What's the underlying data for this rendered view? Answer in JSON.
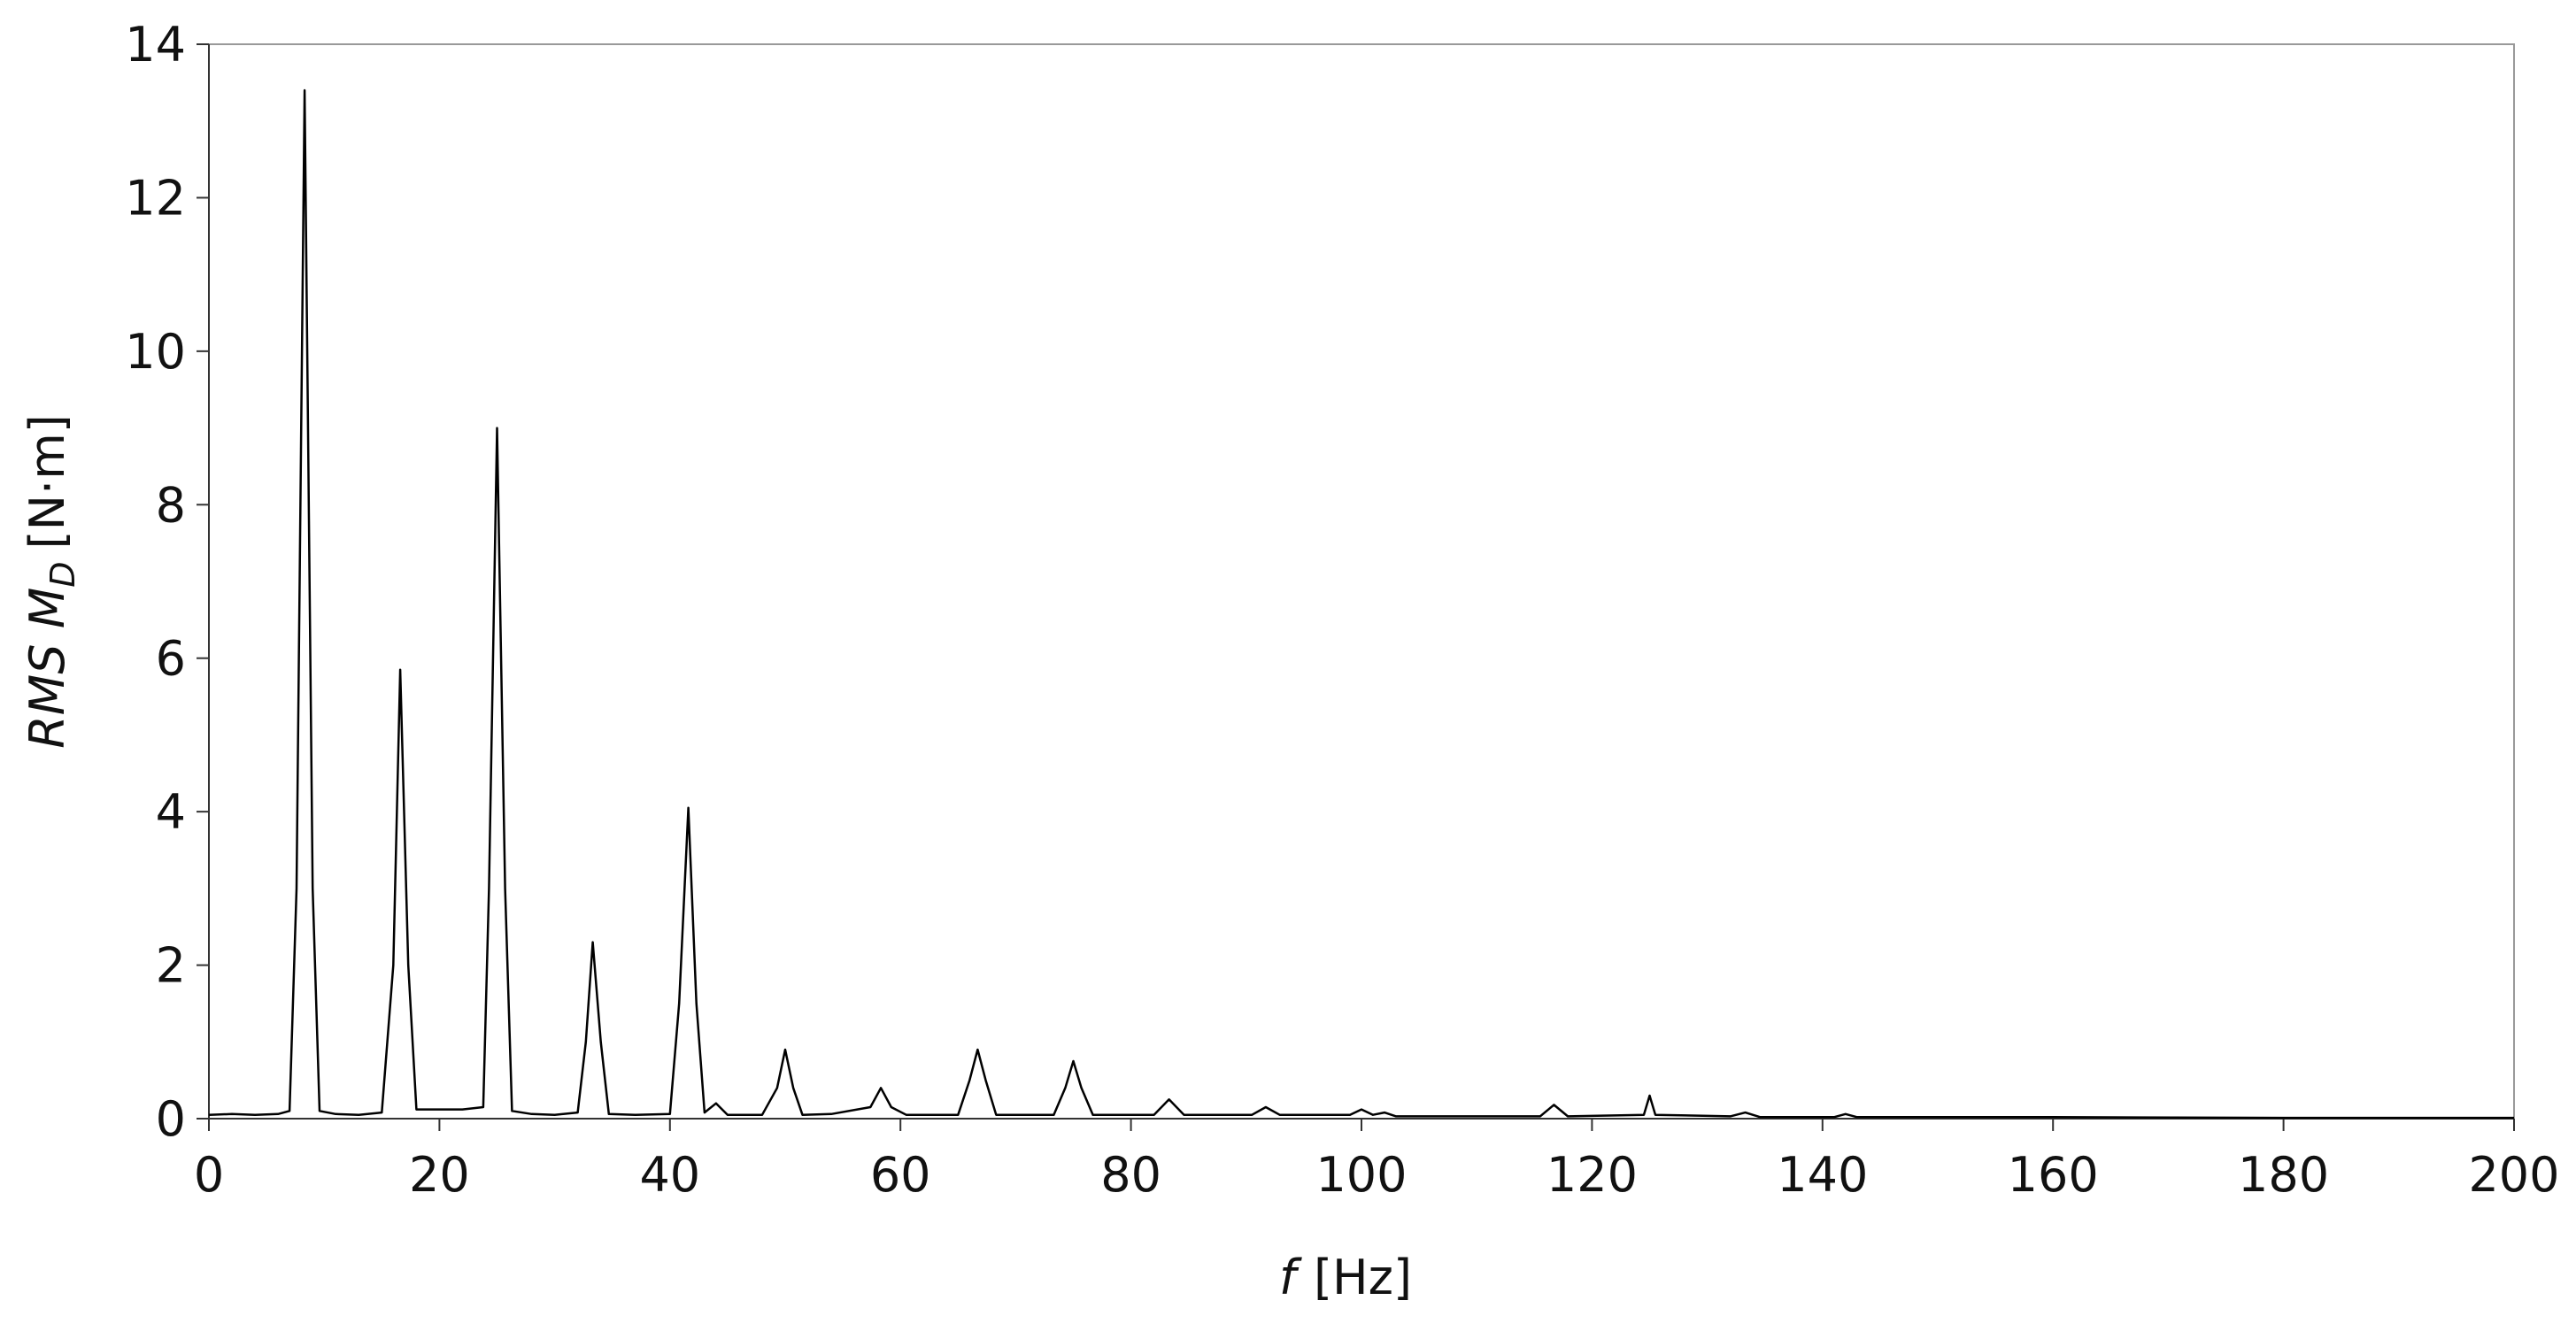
{
  "chart_data": {
    "type": "line",
    "xlabel": {
      "symbol": "f",
      "unit": "[Hz]"
    },
    "ylabel": {
      "main": "RMS M",
      "sub": "D",
      "unit": "[N·m]"
    },
    "xlim": [
      0,
      200
    ],
    "xticks": [
      0,
      20,
      40,
      60,
      80,
      100,
      120,
      140,
      160,
      180,
      200
    ],
    "ylim": [
      0,
      14
    ],
    "yticks": [
      0,
      2,
      4,
      6,
      8,
      10,
      12,
      14
    ],
    "grid": false,
    "series": [
      {
        "color": "#000000",
        "x": [
          0,
          2,
          4,
          6,
          7,
          7.6,
          8.3,
          9,
          9.6,
          11,
          13,
          15,
          16,
          16.6,
          17.3,
          18,
          20,
          22,
          23.8,
          24.3,
          25,
          25.7,
          26.3,
          28,
          30,
          32,
          32.7,
          33.3,
          34,
          34.7,
          37,
          40,
          40.8,
          41.6,
          42.3,
          43,
          44,
          45,
          48,
          49.3,
          50,
          50.7,
          51.5,
          54,
          57.4,
          58.3,
          59.2,
          60.5,
          65,
          66,
          66.7,
          67.4,
          68.3,
          73.3,
          74.3,
          75,
          75.7,
          76.7,
          82,
          83.3,
          84.6,
          90.5,
          91.7,
          92.9,
          99,
          100,
          101,
          102,
          103,
          115.5,
          116.7,
          117.9,
          124.5,
          125,
          125.5,
          132,
          133.3,
          134.6,
          141,
          142,
          143,
          160,
          180,
          200
        ],
        "values": [
          0.05,
          0.06,
          0.05,
          0.06,
          0.1,
          3,
          13.4,
          3,
          0.1,
          0.06,
          0.05,
          0.08,
          2,
          5.85,
          2,
          0.12,
          0.12,
          0.12,
          0.15,
          3,
          9,
          3,
          0.1,
          0.06,
          0.05,
          0.08,
          1,
          2.3,
          1,
          0.06,
          0.05,
          0.06,
          1.5,
          4.05,
          1.5,
          0.08,
          0.2,
          0.05,
          0.05,
          0.4,
          0.9,
          0.4,
          0.05,
          0.06,
          0.15,
          0.4,
          0.15,
          0.05,
          0.05,
          0.5,
          0.9,
          0.5,
          0.05,
          0.05,
          0.4,
          0.75,
          0.4,
          0.05,
          0.05,
          0.25,
          0.05,
          0.05,
          0.15,
          0.05,
          0.05,
          0.12,
          0.05,
          0.08,
          0.03,
          0.03,
          0.18,
          0.03,
          0.05,
          0.3,
          0.05,
          0.03,
          0.08,
          0.02,
          0.02,
          0.06,
          0.02,
          0.02,
          0.01,
          0.01
        ]
      }
    ]
  }
}
